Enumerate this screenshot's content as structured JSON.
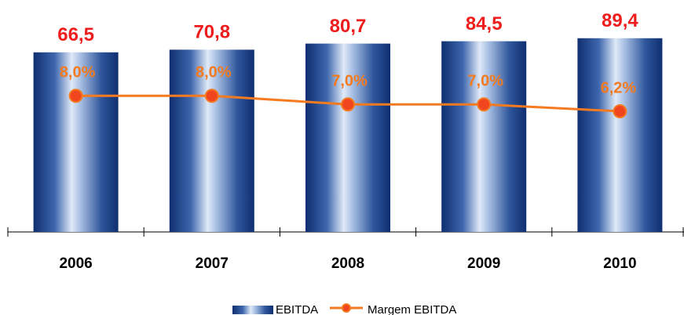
{
  "chart_data": {
    "type": "bar",
    "categories": [
      "2006",
      "2007",
      "2008",
      "2009",
      "2010"
    ],
    "series": [
      {
        "name": "EBITDA",
        "type": "bar",
        "color": "#0f2f70",
        "label_color": "#ee1c1c",
        "values": [
          66.5,
          70.8,
          80.7,
          84.5,
          89.4
        ],
        "value_labels": [
          "66,5",
          "70,8",
          "80,7",
          "84,5",
          "89,4"
        ]
      },
      {
        "name": "Margem EBITDA",
        "type": "line",
        "axis": "y2",
        "color": "#f47a20",
        "marker_color": "#f0451e",
        "values": [
          8.0,
          8.0,
          7.0,
          7.0,
          6.2
        ],
        "value_labels": [
          "8,0%",
          "8,0%",
          "7,0%",
          "7,0%",
          "6,2%"
        ]
      }
    ],
    "ylim": [
      -225,
      126
    ],
    "y2lim": [
      -7.8,
      17.3
    ]
  }
}
